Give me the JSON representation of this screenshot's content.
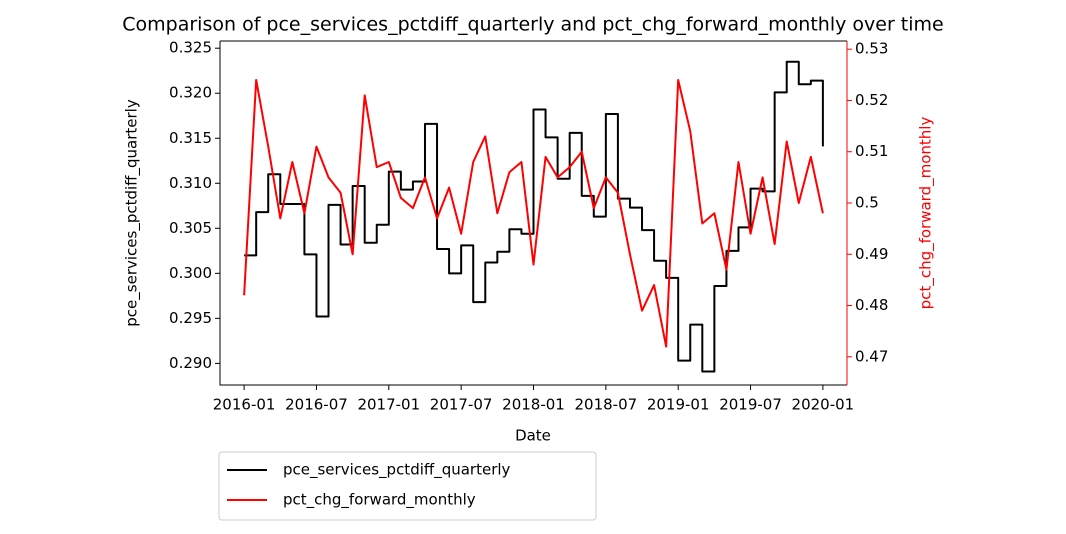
{
  "chart_data": {
    "type": "line",
    "title": "Comparison of pce_services_pctdiff_quarterly and pct_chg_forward_monthly over time",
    "x_label": "Date",
    "y_label": "pce_services_pctdiff_quarterly",
    "y2_label": "pct_chg_forward_monthly",
    "y2_label_color": "#ff0000",
    "legend": "lower left",
    "x": [
      "2016-01",
      "2016-02",
      "2016-03",
      "2016-04",
      "2016-05",
      "2016-06",
      "2016-07",
      "2016-08",
      "2016-09",
      "2016-10",
      "2016-11",
      "2016-12",
      "2017-01",
      "2017-02",
      "2017-03",
      "2017-04",
      "2017-05",
      "2017-06",
      "2017-07",
      "2017-08",
      "2017-09",
      "2017-10",
      "2017-11",
      "2017-12",
      "2018-01",
      "2018-02",
      "2018-03",
      "2018-04",
      "2018-05",
      "2018-06",
      "2018-07",
      "2018-08",
      "2018-09",
      "2018-10",
      "2018-11",
      "2018-12",
      "2019-01",
      "2019-02",
      "2019-03",
      "2019-04",
      "2019-05",
      "2019-06",
      "2019-07",
      "2019-08",
      "2019-09",
      "2019-10",
      "2019-11",
      "2019-12",
      "2020-01"
    ],
    "xlim": [
      "2015-11",
      "2020-03"
    ],
    "xticks": [
      "2016-01",
      "2016-07",
      "2017-01",
      "2017-07",
      "2018-01",
      "2018-07",
      "2019-01",
      "2019-07",
      "2020-01"
    ],
    "ylim": [
      0.2876,
      0.3258
    ],
    "yticks": [
      {
        "value": 0.29,
        "label": "0.290"
      },
      {
        "value": 0.295,
        "label": "0.295"
      },
      {
        "value": 0.3,
        "label": "0.300"
      },
      {
        "value": 0.305,
        "label": "0.305"
      },
      {
        "value": 0.31,
        "label": "0.310"
      },
      {
        "value": 0.315,
        "label": "0.315"
      },
      {
        "value": 0.32,
        "label": "0.320"
      },
      {
        "value": 0.325,
        "label": "0.325"
      }
    ],
    "y2lim": [
      0.4645,
      0.5316
    ],
    "y2ticks": [
      0.47,
      0.48,
      0.49,
      0.5,
      0.51,
      0.52,
      0.53
    ],
    "series": [
      {
        "name": "pce_services_pctdiff_quarterly",
        "color": "#000000",
        "step": true,
        "values": [
          0.302,
          0.3068,
          0.311,
          0.3077,
          0.3077,
          0.3021,
          0.2952,
          0.3076,
          0.3032,
          0.3097,
          0.3034,
          0.3054,
          0.3113,
          0.3093,
          0.3102,
          0.3166,
          0.3027,
          0.3,
          0.3031,
          0.2968,
          0.3012,
          0.3024,
          0.3049,
          0.3044,
          0.3182,
          0.3151,
          0.3105,
          0.3156,
          0.3086,
          0.3063,
          0.3177,
          0.3083,
          0.3073,
          0.3048,
          0.3014,
          0.2995,
          0.2903,
          0.2943,
          0.2891,
          0.2986,
          0.3025,
          0.3051,
          0.3094,
          0.3091,
          0.3201,
          0.3235,
          0.321,
          0.3214,
          0.3141
        ]
      },
      {
        "name": "pct_chg_forward_monthly",
        "color": "#ff0000",
        "axis": "y2",
        "values": [
          0.482,
          0.524,
          0.511,
          0.497,
          0.508,
          0.498,
          0.511,
          0.505,
          0.502,
          0.49,
          0.521,
          0.507,
          0.508,
          0.501,
          0.499,
          0.505,
          0.497,
          0.503,
          0.494,
          0.508,
          0.513,
          0.498,
          0.506,
          0.508,
          0.488,
          0.509,
          0.505,
          0.507,
          0.51,
          0.499,
          0.505,
          0.502,
          0.49,
          0.479,
          0.484,
          0.472,
          0.524,
          0.514,
          0.496,
          0.498,
          0.487,
          0.508,
          0.494,
          0.505,
          0.492,
          0.512,
          0.5,
          0.509,
          0.498
        ]
      }
    ]
  }
}
